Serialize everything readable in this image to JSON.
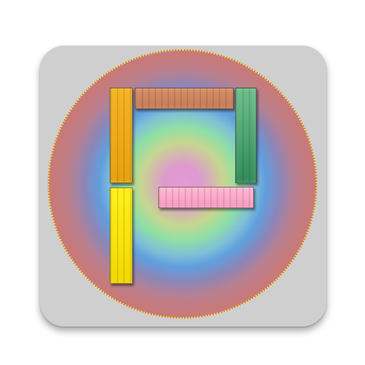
{
  "icon": {
    "name": "app-launcher-icon",
    "colors": {
      "tile_background": "#cfcfcf",
      "disc_outer": "#cc7b78",
      "disc_center": "#e39bd6",
      "disc_border_dotted": "#f5e13a",
      "bar_left_upper": "#f6b323",
      "bar_left_lower": "#fff01a",
      "bar_top": "#d68f69",
      "bar_right": "#2f8c5a",
      "bar_middle": "#ffb8d4"
    }
  }
}
